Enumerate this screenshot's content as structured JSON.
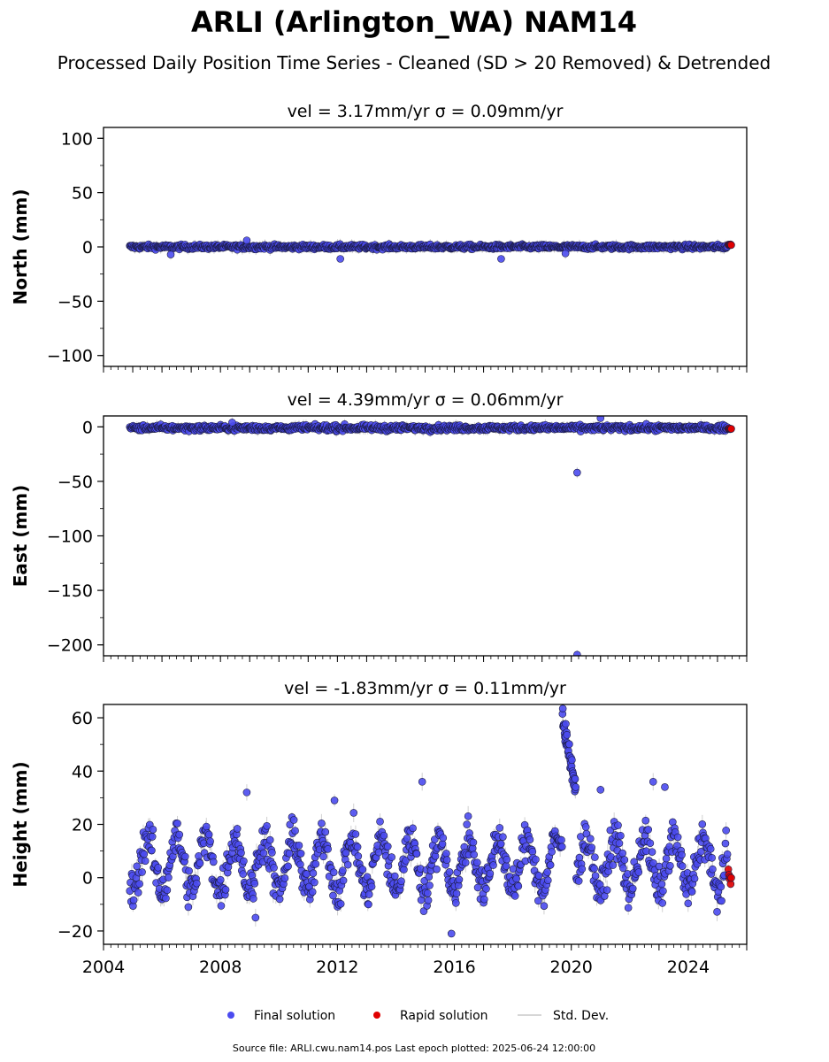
{
  "figure": {
    "title": "ARLI (Arlington_WA) NAM14",
    "subtitle": "Processed Daily Position Time Series - Cleaned (SD > 20 Removed) & Detrended",
    "source_note": "Source file: ARLI.cwu.nam14.pos  Last epoch plotted: 2025-06-24 12:00:00",
    "legend": [
      {
        "label": "Final solution",
        "color": "#4b4bf0",
        "kind": "marker"
      },
      {
        "label": "Rapid solution",
        "color": "#e00000",
        "kind": "marker"
      },
      {
        "label": "Std. Dev.",
        "color": "#c8c8c8",
        "kind": "line"
      }
    ]
  },
  "chart_data": [
    {
      "type": "scatter",
      "panel": "north",
      "title": "vel = 3.17mm/yr   σ = 0.09mm/yr",
      "ylabel": "North (mm)",
      "xlim": [
        2004.0,
        2026.0
      ],
      "ylim": [
        -110,
        110
      ],
      "yticks": [
        -100,
        -50,
        0,
        50,
        100
      ],
      "yticklabels": [
        "−100",
        "−50",
        "0",
        "50",
        "100"
      ],
      "xticks": [
        2004,
        2008,
        2012,
        2016,
        2020,
        2024
      ],
      "show_xticklabels": false,
      "series": [
        {
          "name": "Final solution",
          "color": "#4b4bf0",
          "x_range": [
            2004.9,
            2025.35
          ],
          "center": 0,
          "spread": 1.5,
          "outliers": [
            [
              2006.3,
              -7
            ],
            [
              2008.9,
              6
            ],
            [
              2012.1,
              -11
            ],
            [
              2017.6,
              -11
            ],
            [
              2019.8,
              -6
            ]
          ]
        },
        {
          "name": "Rapid solution",
          "color": "#e00000",
          "x_range": [
            2025.37,
            2025.48
          ],
          "center": 2,
          "spread": 0.5
        }
      ]
    },
    {
      "type": "scatter",
      "panel": "east",
      "title": "vel = 4.39mm/yr   σ = 0.06mm/yr",
      "ylabel": "East (mm)",
      "xlim": [
        2004.0,
        2026.0
      ],
      "ylim": [
        -210,
        10
      ],
      "yticks": [
        -200,
        -150,
        -100,
        -50,
        0
      ],
      "yticklabels": [
        "−200",
        "−150",
        "−100",
        "−50",
        "0"
      ],
      "xticks": [
        2004,
        2008,
        2012,
        2016,
        2020,
        2024
      ],
      "show_xticklabels": false,
      "series": [
        {
          "name": "Final solution",
          "color": "#4b4bf0",
          "x_range": [
            2004.9,
            2025.35
          ],
          "center": -1,
          "spread": 1.8,
          "outliers": [
            [
              2020.2,
              -42
            ],
            [
              2020.2,
              -209
            ],
            [
              2021.0,
              8
            ],
            [
              2008.4,
              4
            ]
          ]
        },
        {
          "name": "Rapid solution",
          "color": "#e00000",
          "x_range": [
            2025.37,
            2025.48
          ],
          "center": -2,
          "spread": 0.5
        }
      ]
    },
    {
      "type": "scatter",
      "panel": "height",
      "title": "vel = -1.83mm/yr   σ = 0.11mm/yr",
      "ylabel": "Height (mm)",
      "xlim": [
        2004.0,
        2026.0
      ],
      "ylim": [
        -25,
        65
      ],
      "yticks": [
        -20,
        0,
        20,
        40,
        60
      ],
      "yticklabels": [
        "−20",
        "0",
        "20",
        "40",
        "60"
      ],
      "xticks": [
        2004,
        2008,
        2012,
        2016,
        2020,
        2024
      ],
      "xticklabels": [
        "2004",
        "2008",
        "2012",
        "2016",
        "2020",
        "2024"
      ],
      "show_xticklabels": true,
      "series": [
        {
          "name": "Final solution",
          "color": "#4b4bf0",
          "x_range": [
            2004.9,
            2025.35
          ],
          "center": 5,
          "spread": 5,
          "seasonal_amplitude": 10,
          "cluster": {
            "x_range": [
              2019.7,
              2020.15
            ],
            "y_range": [
              33,
              60
            ]
          },
          "outliers": [
            [
              2008.9,
              32
            ],
            [
              2011.9,
              29
            ],
            [
              2014.9,
              36
            ],
            [
              2015.9,
              -21
            ],
            [
              2021.0,
              33
            ],
            [
              2022.8,
              36
            ],
            [
              2023.2,
              34
            ],
            [
              2009.2,
              -15
            ]
          ]
        },
        {
          "name": "Rapid solution",
          "color": "#e00000",
          "x_range": [
            2025.37,
            2025.48
          ],
          "center": 0,
          "spread": 3
        }
      ]
    }
  ]
}
